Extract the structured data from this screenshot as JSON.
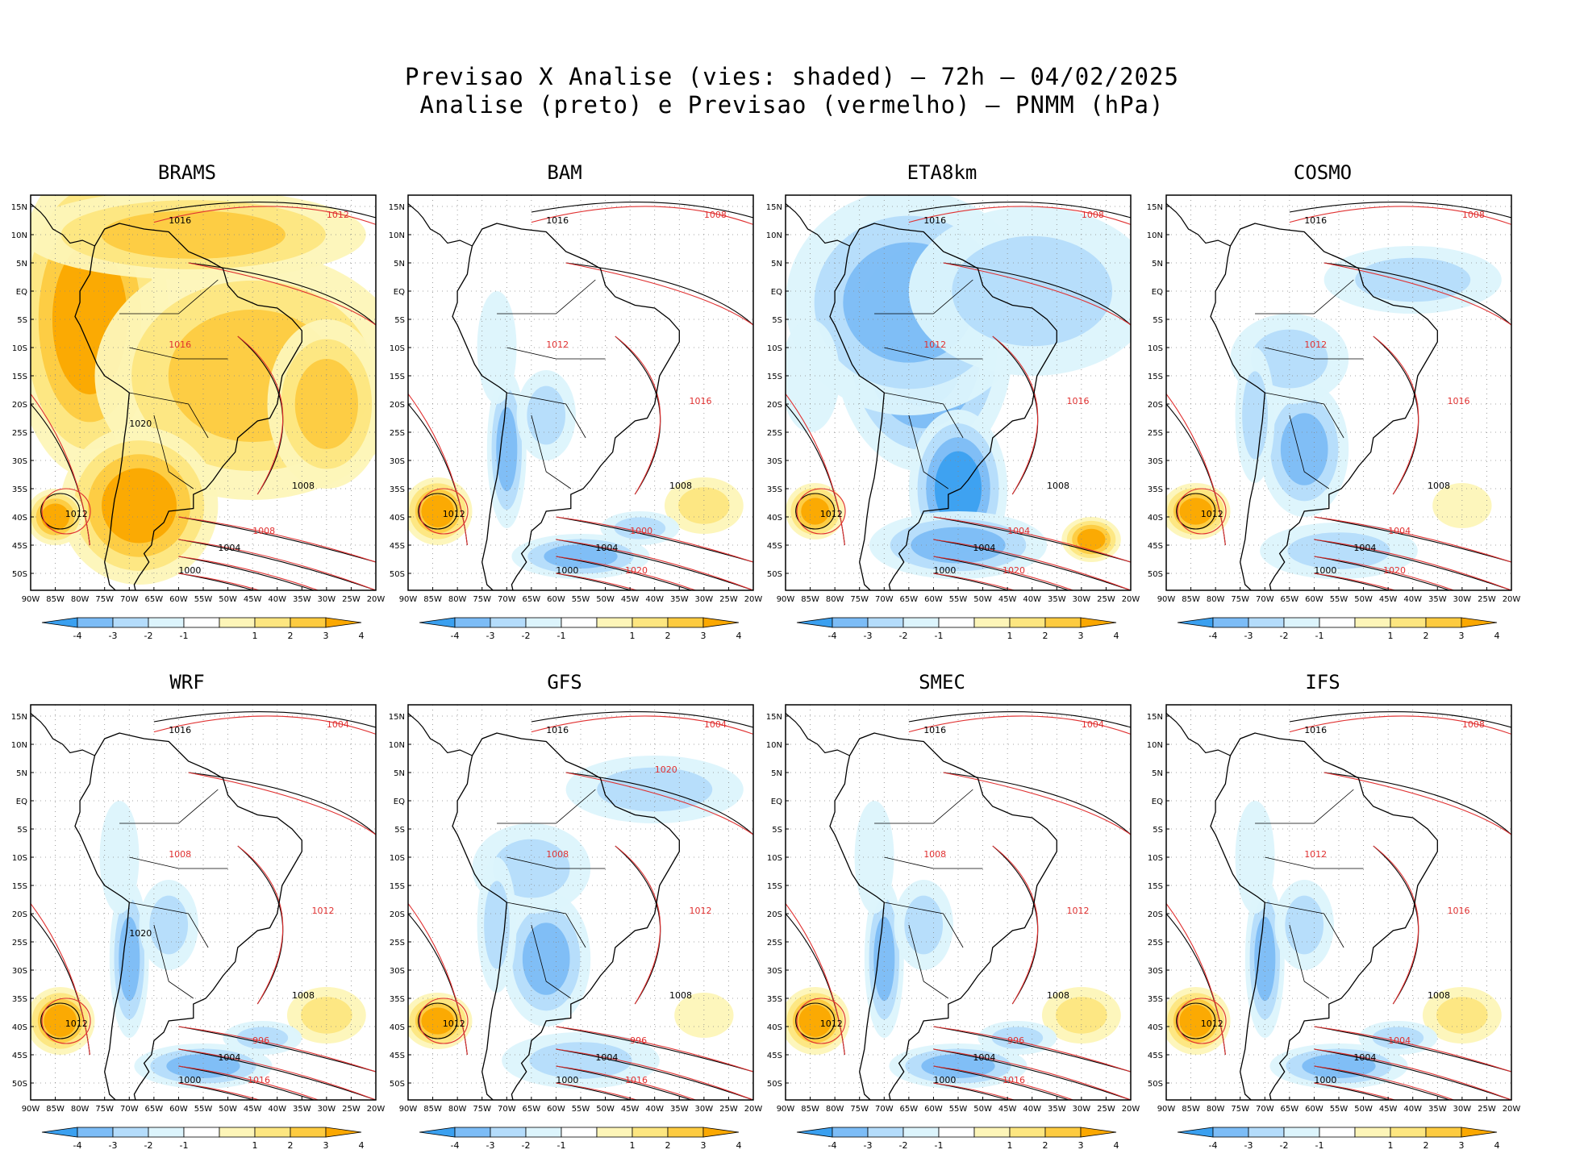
{
  "title_line1": "Previsao X Analise (vies: shaded) — 72h — 04/02/2025",
  "title_line2": "Analise (preto) e Previsao (vermelho) — PNMM (hPa)",
  "colors": {
    "neg4": "#3aa0f0",
    "neg3": "#7cbcf6",
    "neg2": "#b4dcfb",
    "neg1": "#dcf4fc",
    "pos1": "#fdf5b8",
    "pos2": "#fde680",
    "pos3": "#fdcb40",
    "pos4": "#fba800",
    "analysis_line": "#000000",
    "forecast_line": "#e03030",
    "grid": "#888888"
  },
  "chart_data": [
    {
      "type": "heatmap",
      "model": "BRAMS",
      "bias": "warm",
      "xlabels": [
        "90W",
        "85W",
        "80W",
        "75W",
        "70W",
        "65W",
        "60W",
        "55W",
        "50W",
        "45W",
        "40W",
        "35W",
        "30W",
        "25W",
        "20W"
      ],
      "ylabels": [
        "15N",
        "10N",
        "5N",
        "EQ",
        "5S",
        "10S",
        "15S",
        "20S",
        "25S",
        "30S",
        "35S",
        "40S",
        "45S",
        "50S"
      ],
      "colorbar": [
        "-4",
        "-3",
        "-2",
        "-1",
        "1",
        "2",
        "3",
        "4"
      ],
      "black_isobars": [
        "1000",
        "1004",
        "1008",
        "1012",
        "1016",
        "1020"
      ],
      "red_isobars": [
        "1008",
        "1012",
        "1016"
      ]
    },
    {
      "type": "heatmap",
      "model": "BAM",
      "bias": "mixed",
      "xlabels": [
        "90W",
        "85W",
        "80W",
        "75W",
        "70W",
        "65W",
        "60W",
        "55W",
        "50W",
        "45W",
        "40W",
        "35W",
        "30W",
        "25W",
        "20W"
      ],
      "ylabels": [
        "15N",
        "10N",
        "5N",
        "EQ",
        "5S",
        "10S",
        "15S",
        "20S",
        "25S",
        "30S",
        "35S",
        "40S",
        "45S",
        "50S"
      ],
      "colorbar": [
        "-4",
        "-3",
        "-2",
        "-1",
        "1",
        "2",
        "3",
        "4"
      ],
      "black_isobars": [
        "1000",
        "1004",
        "1008",
        "1012",
        "1016"
      ],
      "red_isobars": [
        "1000",
        "1008",
        "1012",
        "1016",
        "1020"
      ]
    },
    {
      "type": "heatmap",
      "model": "ETA8km",
      "bias": "cold",
      "xlabels": [
        "90W",
        "85W",
        "80W",
        "75W",
        "70W",
        "65W",
        "60W",
        "55W",
        "50W",
        "45W",
        "40W",
        "35W",
        "30W",
        "25W",
        "20W"
      ],
      "ylabels": [
        "15N",
        "10N",
        "5N",
        "EQ",
        "5S",
        "10S",
        "15S",
        "20S",
        "25S",
        "30S",
        "35S",
        "40S",
        "45S",
        "50S"
      ],
      "colorbar": [
        "-4",
        "-3",
        "-2",
        "-1",
        "1",
        "2",
        "3",
        "4"
      ],
      "black_isobars": [
        "1000",
        "1004",
        "1008",
        "1012",
        "1016"
      ],
      "red_isobars": [
        "1004",
        "1008",
        "1012",
        "1016",
        "1020"
      ]
    },
    {
      "type": "heatmap",
      "model": "COSMO",
      "bias": "coolish",
      "xlabels": [
        "90W",
        "85W",
        "80W",
        "75W",
        "70W",
        "65W",
        "60W",
        "55W",
        "50W",
        "45W",
        "40W",
        "35W",
        "30W",
        "25W",
        "20W"
      ],
      "ylabels": [
        "15N",
        "10N",
        "5N",
        "EQ",
        "5S",
        "10S",
        "15S",
        "20S",
        "25S",
        "30S",
        "35S",
        "40S",
        "45S",
        "50S"
      ],
      "colorbar": [
        "-4",
        "-3",
        "-2",
        "-1",
        "1",
        "2",
        "3",
        "4"
      ],
      "black_isobars": [
        "1000",
        "1004",
        "1008",
        "1012",
        "1016"
      ],
      "red_isobars": [
        "1004",
        "1008",
        "1012",
        "1016",
        "1020"
      ]
    },
    {
      "type": "heatmap",
      "model": "WRF",
      "bias": "mixed",
      "xlabels": [
        "90W",
        "85W",
        "80W",
        "75W",
        "70W",
        "65W",
        "60W",
        "55W",
        "50W",
        "45W",
        "40W",
        "35W",
        "30W",
        "25W",
        "20W"
      ],
      "ylabels": [
        "15N",
        "10N",
        "5N",
        "EQ",
        "5S",
        "10S",
        "15S",
        "20S",
        "25S",
        "30S",
        "35S",
        "40S",
        "45S",
        "50S"
      ],
      "colorbar": [
        "-4",
        "-3",
        "-2",
        "-1",
        "1",
        "2",
        "3",
        "4"
      ],
      "black_isobars": [
        "1000",
        "1004",
        "1008",
        "1012",
        "1016",
        "1020"
      ],
      "red_isobars": [
        "996",
        "1004",
        "1008",
        "1012",
        "1016"
      ]
    },
    {
      "type": "heatmap",
      "model": "GFS",
      "bias": "coolish",
      "xlabels": [
        "90W",
        "85W",
        "80W",
        "75W",
        "70W",
        "65W",
        "60W",
        "55W",
        "50W",
        "45W",
        "40W",
        "35W",
        "30W",
        "25W",
        "20W"
      ],
      "ylabels": [
        "15N",
        "10N",
        "5N",
        "EQ",
        "5S",
        "10S",
        "15S",
        "20S",
        "25S",
        "30S",
        "35S",
        "40S",
        "45S",
        "50S"
      ],
      "colorbar": [
        "-4",
        "-3",
        "-2",
        "-1",
        "1",
        "2",
        "3",
        "4"
      ],
      "black_isobars": [
        "1000",
        "1004",
        "1008",
        "1012",
        "1016"
      ],
      "red_isobars": [
        "996",
        "1004",
        "1008",
        "1012",
        "1016",
        "1020"
      ]
    },
    {
      "type": "heatmap",
      "model": "SMEC",
      "bias": "mixed",
      "xlabels": [
        "90W",
        "85W",
        "80W",
        "75W",
        "70W",
        "65W",
        "60W",
        "55W",
        "50W",
        "45W",
        "40W",
        "35W",
        "30W",
        "25W",
        "20W"
      ],
      "ylabels": [
        "15N",
        "10N",
        "5N",
        "EQ",
        "5S",
        "10S",
        "15S",
        "20S",
        "25S",
        "30S",
        "35S",
        "40S",
        "45S",
        "50S"
      ],
      "colorbar": [
        "-4",
        "-3",
        "-2",
        "-1",
        "1",
        "2",
        "3",
        "4"
      ],
      "black_isobars": [
        "1000",
        "1004",
        "1008",
        "1012",
        "1016"
      ],
      "red_isobars": [
        "996",
        "1004",
        "1008",
        "1012",
        "1016"
      ]
    },
    {
      "type": "heatmap",
      "model": "IFS",
      "bias": "mixed",
      "xlabels": [
        "90W",
        "85W",
        "80W",
        "75W",
        "70W",
        "65W",
        "60W",
        "55W",
        "50W",
        "45W",
        "40W",
        "35W",
        "30W",
        "25W",
        "20W"
      ],
      "ylabels": [
        "15N",
        "10N",
        "5N",
        "EQ",
        "5S",
        "10S",
        "15S",
        "20S",
        "25S",
        "30S",
        "35S",
        "40S",
        "45S",
        "50S"
      ],
      "colorbar": [
        "-4",
        "-3",
        "-2",
        "-1",
        "1",
        "2",
        "3",
        "4"
      ],
      "black_isobars": [
        "1000",
        "1004",
        "1008",
        "1012",
        "1016"
      ],
      "red_isobars": [
        "1004",
        "1008",
        "1012",
        "1016"
      ]
    }
  ]
}
